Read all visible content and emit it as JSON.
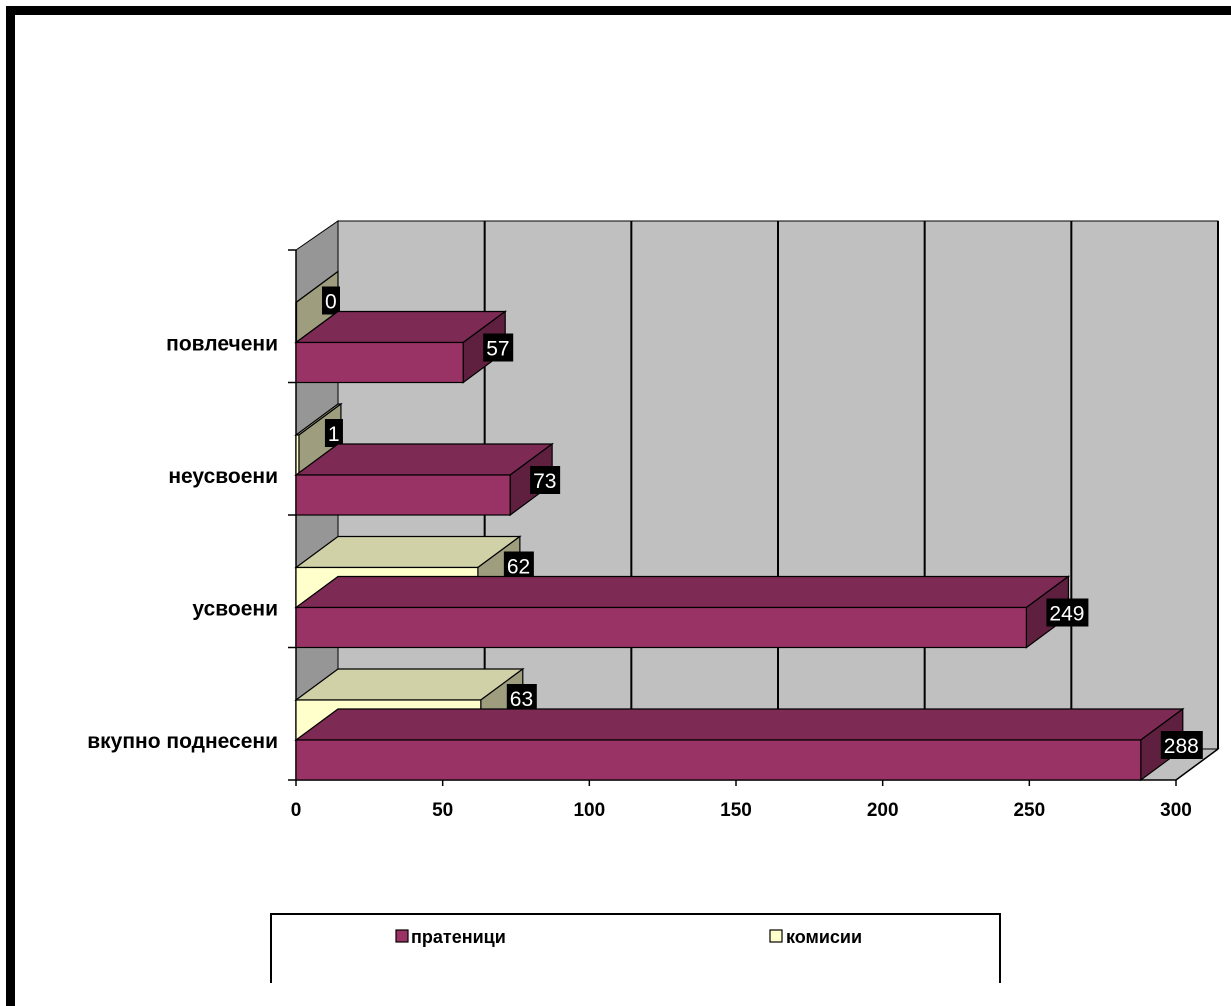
{
  "chart_data": {
    "type": "bar",
    "orientation": "horizontal",
    "three_d": true,
    "categories": [
      "вкупно поднесени",
      "усвоени",
      "неусвоени",
      "повлечени"
    ],
    "series": [
      {
        "name": "пратеници",
        "values": [
          288,
          249,
          73,
          57
        ]
      },
      {
        "name": "комисии",
        "values": [
          63,
          62,
          1,
          0
        ]
      }
    ],
    "xlim": [
      0,
      300
    ],
    "x_ticks": [
      "0",
      "50",
      "100",
      "150",
      "200",
      "250",
      "300"
    ],
    "grid": true,
    "legend_position": "bottom",
    "data_labels": true,
    "colors": {
      "пратеници": "#993366",
      "комисии": "#ffffcc",
      "wall": "#c0c0c0",
      "label_bg": "#000000"
    }
  }
}
